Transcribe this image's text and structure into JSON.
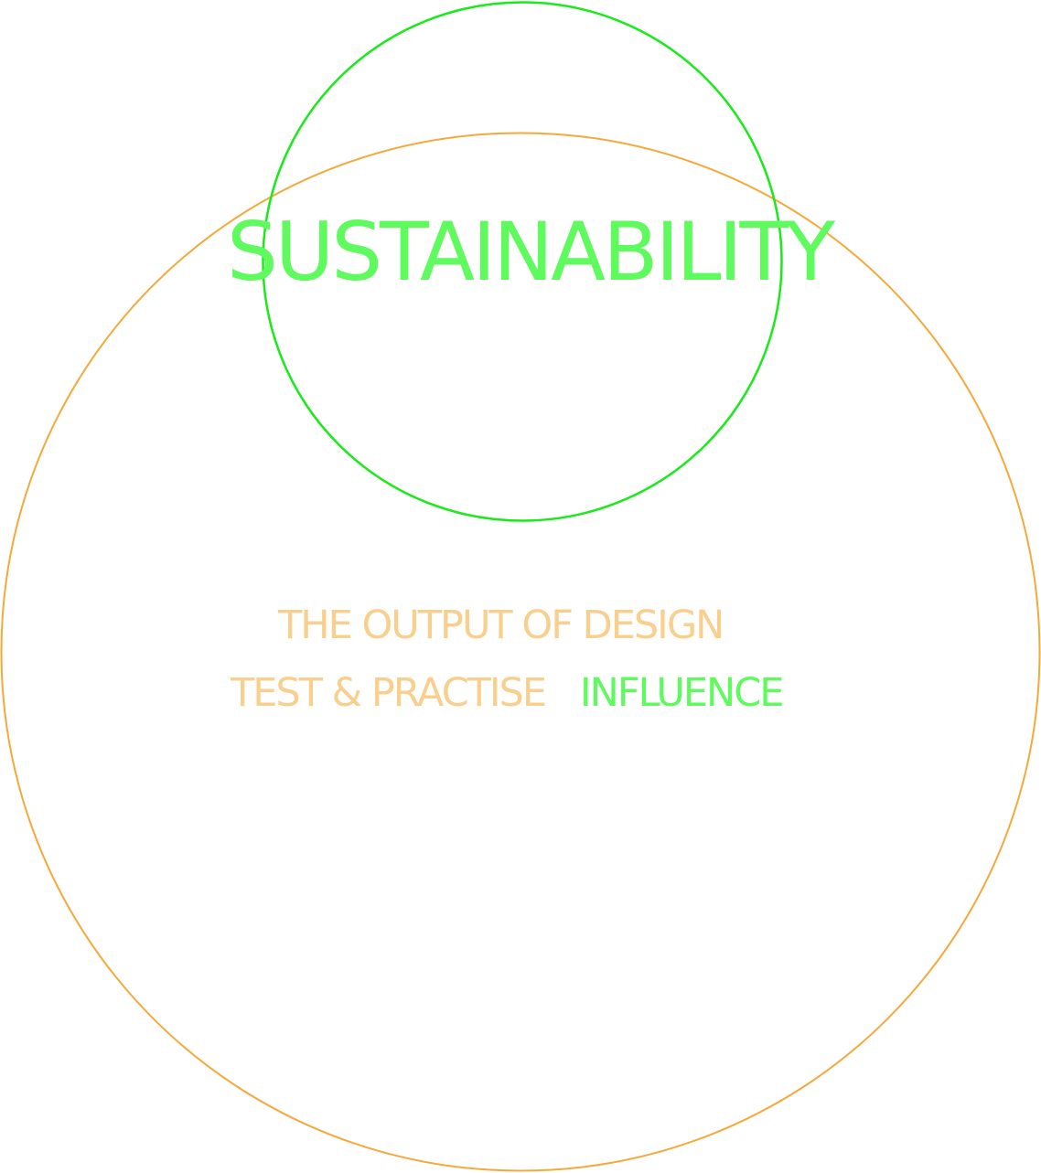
{
  "colors": {
    "outer_circle": "#f5a93a",
    "inner_circle": "#1aea1a",
    "green_text": "#5efa5e",
    "orange_text": "#f9cf8e",
    "background": "#ffffff"
  },
  "title": "SUSTAINABILITY",
  "labels": {
    "output_of_design": "THE OUTPUT OF DESIGN",
    "test_practise": "TEST & PRACTISE",
    "influence": "INFLUENCE"
  }
}
